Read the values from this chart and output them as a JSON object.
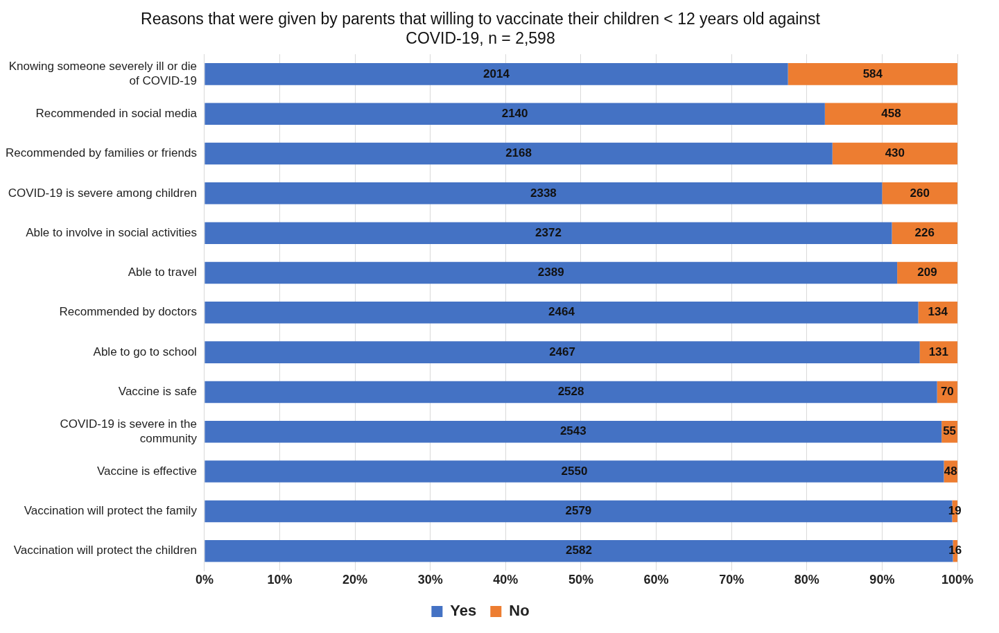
{
  "chart_data": {
    "type": "bar",
    "orientation": "horizontal",
    "stacked": true,
    "title": "Reasons that were given by parents that willing to vaccinate their children < 12 years old against COVID-19, n = 2,598",
    "categories": [
      "Knowing someone severely ill or die of COVID-19",
      "Recommended in social media",
      "Recommended by families or friends",
      "COVID-19 is severe among children",
      "Able to involve in social activities",
      "Able to travel",
      "Recommended by doctors",
      "Able to go to school",
      "Vaccine is safe",
      "COVID-19 is severe in the community",
      "Vaccine is effective",
      "Vaccination will protect the family",
      "Vaccination will protect the children"
    ],
    "series": [
      {
        "name": "Yes",
        "color": "#4472c4",
        "values": [
          77.5,
          82.4,
          83.4,
          90.0,
          91.3,
          92.0,
          94.8,
          95.0,
          97.3,
          97.9,
          98.2,
          99.3,
          99.4
        ]
      },
      {
        "name": "No",
        "color": "#ed7d31",
        "values": [
          22.5,
          17.6,
          16.6,
          10.0,
          8.7,
          8.0,
          5.2,
          5.0,
          2.7,
          2.1,
          1.8,
          0.7,
          0.6
        ]
      }
    ],
    "xlim": [
      0,
      100
    ],
    "xticks": [
      {
        "value": 0,
        "label": "0%"
      },
      {
        "value": 10,
        "label": "10%"
      },
      {
        "value": 20,
        "label": "20%"
      },
      {
        "value": 30,
        "label": "30%"
      },
      {
        "value": 40,
        "label": "40%"
      },
      {
        "value": 50,
        "label": "50%"
      },
      {
        "value": 60,
        "label": "60%"
      },
      {
        "value": 70,
        "label": "70%"
      },
      {
        "value": 80,
        "label": "80%"
      },
      {
        "value": 90,
        "label": "90%"
      },
      {
        "value": 100,
        "label": "100%"
      }
    ],
    "annotations": [
      "2014",
      "584",
      "2140",
      "458",
      "2168",
      "430",
      "2338",
      "260",
      "2372",
      "226",
      "2389",
      "209",
      "2464",
      "134",
      "2467",
      "131",
      "2528",
      "70",
      "2543",
      "55",
      "2550",
      "48",
      "2579",
      "19",
      "2582",
      "16"
    ],
    "grid": "x",
    "legend": "bottom"
  }
}
